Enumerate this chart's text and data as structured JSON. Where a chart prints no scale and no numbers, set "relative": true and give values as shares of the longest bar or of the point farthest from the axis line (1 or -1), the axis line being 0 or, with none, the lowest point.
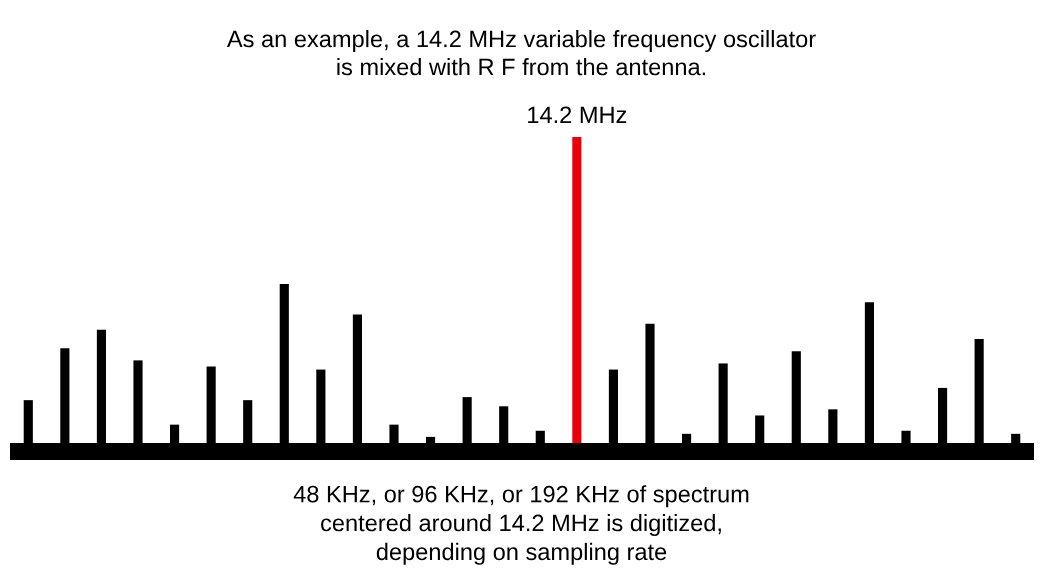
{
  "chart_data": {
    "type": "bar",
    "relative": true,
    "title": "As an example, a 14.2 MHz variable frequency oscillator\nis mixed with R F from the antenna.",
    "annotations": [
      "14.2 MHz",
      "48 KHz, or 96 KHz, or 192 KHz of spectrum\ncentered around 14.2 MHz is digitized,\ndepending on sampling rate"
    ],
    "categories": [
      null,
      null,
      null,
      null,
      null,
      null,
      null,
      null,
      null,
      null,
      null,
      null,
      null,
      null,
      null,
      null,
      null,
      null,
      null,
      null,
      null,
      null,
      null,
      null,
      null,
      null,
      null,
      null
    ],
    "values": [
      0.14,
      0.31,
      0.37,
      0.27,
      0.06,
      0.25,
      0.14,
      0.52,
      0.24,
      0.42,
      0.06,
      0.02,
      0.15,
      0.12,
      0.04,
      1.0,
      0.24,
      0.39,
      0.03,
      0.26,
      0.09,
      0.3,
      0.11,
      0.46,
      0.04,
      0.18,
      0.34,
      0.03
    ],
    "colors": [
      "#000000",
      "#000000",
      "#000000",
      "#000000",
      "#000000",
      "#000000",
      "#000000",
      "#000000",
      "#000000",
      "#000000",
      "#000000",
      "#000000",
      "#000000",
      "#000000",
      "#000000",
      "#e8000b",
      "#000000",
      "#000000",
      "#000000",
      "#000000",
      "#000000",
      "#000000",
      "#000000",
      "#000000",
      "#000000",
      "#000000",
      "#000000",
      "#000000"
    ]
  }
}
